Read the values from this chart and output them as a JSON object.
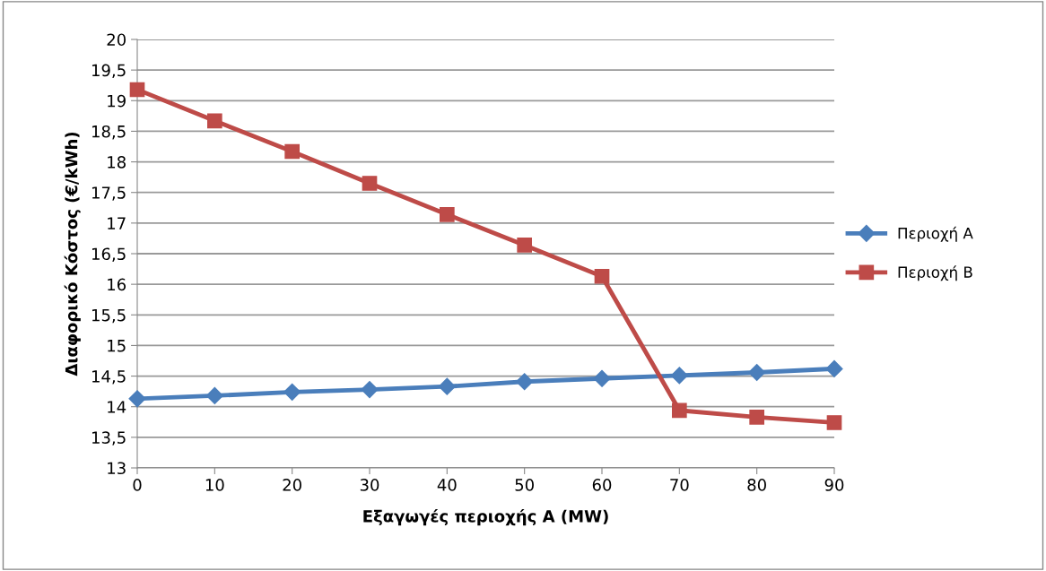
{
  "chart_data": {
    "type": "line",
    "xlabel": "Εξαγωγές περιοχής Α (MW)",
    "ylabel": "Διαφορικό Κόστος (€/kWh)",
    "x": [
      0,
      10,
      20,
      30,
      40,
      50,
      60,
      70,
      80,
      90
    ],
    "series": [
      {
        "name": "Περιοχή Α",
        "color": "#4a7ebb",
        "marker": "diamond",
        "values": [
          14.13,
          14.18,
          14.24,
          14.28,
          14.33,
          14.41,
          14.46,
          14.51,
          14.56,
          14.62
        ]
      },
      {
        "name": "Περιοχή Β",
        "color": "#be4b48",
        "marker": "square",
        "values": [
          19.18,
          18.67,
          18.17,
          17.65,
          17.14,
          16.64,
          16.13,
          13.94,
          13.83,
          13.74
        ]
      }
    ],
    "xlim": [
      0,
      90
    ],
    "xticks": [
      0,
      10,
      20,
      30,
      40,
      50,
      60,
      70,
      80,
      90
    ],
    "ylim": [
      13,
      20
    ],
    "yticks": [
      {
        "value": 13,
        "label": "13"
      },
      {
        "value": 13.5,
        "label": "13,5"
      },
      {
        "value": 14,
        "label": "14"
      },
      {
        "value": 14.5,
        "label": "14,5"
      },
      {
        "value": 15,
        "label": "15"
      },
      {
        "value": 15.5,
        "label": "15,5"
      },
      {
        "value": 16,
        "label": "16"
      },
      {
        "value": 16.5,
        "label": "16,5"
      },
      {
        "value": 17,
        "label": "17"
      },
      {
        "value": 17.5,
        "label": "17,5"
      },
      {
        "value": 18,
        "label": "18"
      },
      {
        "value": 18.5,
        "label": "18,5"
      },
      {
        "value": 19,
        "label": "19"
      },
      {
        "value": 19.5,
        "label": "19,5"
      },
      {
        "value": 20,
        "label": "20"
      }
    ],
    "grid": "y",
    "legend": "right",
    "line_style": "solid"
  }
}
